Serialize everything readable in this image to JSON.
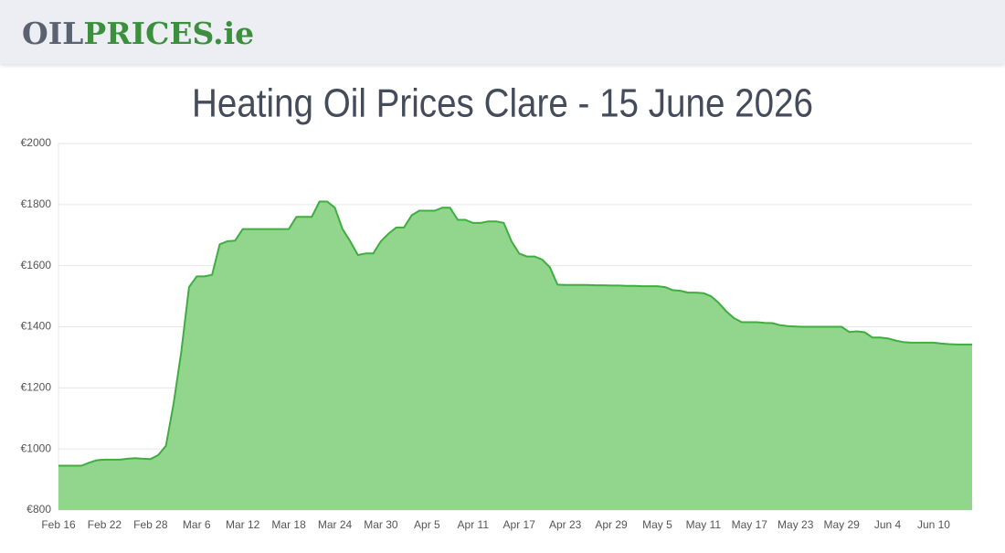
{
  "header": {
    "logo_part1": "OIL",
    "logo_part2": "PRICES.ie"
  },
  "chart_data": {
    "type": "area",
    "title": "Heating Oil Prices Clare - 15 June 2026",
    "categories": [
      "Feb 16",
      null,
      null,
      null,
      null,
      null,
      "Feb 22",
      null,
      null,
      null,
      null,
      null,
      "Feb 28",
      null,
      null,
      null,
      null,
      null,
      "Mar 6",
      null,
      null,
      null,
      null,
      null,
      "Mar 12",
      null,
      null,
      null,
      null,
      null,
      "Mar 18",
      null,
      null,
      null,
      null,
      null,
      "Mar 24",
      null,
      null,
      null,
      null,
      null,
      "Mar 30",
      null,
      null,
      null,
      null,
      null,
      "Apr 5",
      null,
      null,
      null,
      null,
      null,
      "Apr 11",
      null,
      null,
      null,
      null,
      null,
      "Apr 17",
      null,
      null,
      null,
      null,
      null,
      "Apr 23",
      null,
      null,
      null,
      null,
      null,
      "Apr 29",
      null,
      null,
      null,
      null,
      null,
      "May 5",
      null,
      null,
      null,
      null,
      null,
      "May 11",
      null,
      null,
      null,
      null,
      null,
      "May 17",
      null,
      null,
      null,
      null,
      null,
      "May 23",
      null,
      null,
      null,
      null,
      null,
      "May 29",
      null,
      null,
      null,
      null,
      null,
      "Jun 4",
      null,
      null,
      null,
      null,
      null,
      "Jun 10",
      null,
      null,
      null,
      null,
      null
    ],
    "series": [
      {
        "color": "#3fae3f",
        "fill": "#92d68e",
        "values": [
          945,
          945,
          945,
          945,
          955,
          963,
          965,
          965,
          965,
          968,
          970,
          968,
          967,
          980,
          1010,
          1150,
          1320,
          1530,
          1565,
          1565,
          1570,
          1670,
          1680,
          1682,
          1720,
          1720,
          1720,
          1720,
          1720,
          1720,
          1720,
          1760,
          1760,
          1760,
          1810,
          1810,
          1790,
          1720,
          1680,
          1635,
          1640,
          1640,
          1680,
          1705,
          1725,
          1725,
          1765,
          1780,
          1780,
          1780,
          1790,
          1790,
          1750,
          1750,
          1740,
          1740,
          1745,
          1745,
          1740,
          1680,
          1640,
          1630,
          1630,
          1620,
          1595,
          1538,
          1537,
          1537,
          1537,
          1537,
          1536,
          1536,
          1535,
          1535,
          1534,
          1534,
          1533,
          1533,
          1533,
          1530,
          1520,
          1518,
          1512,
          1512,
          1510,
          1500,
          1478,
          1450,
          1428,
          1415,
          1415,
          1415,
          1413,
          1412,
          1405,
          1402,
          1401,
          1400,
          1400,
          1400,
          1400,
          1400,
          1400,
          1383,
          1385,
          1382,
          1365,
          1365,
          1362,
          1355,
          1350,
          1348,
          1348,
          1348,
          1348,
          1345,
          1343,
          1342,
          1342,
          1342
        ]
      }
    ],
    "ylim": [
      800,
      2000
    ],
    "yticks": [
      {
        "value": 800,
        "label": "€800"
      },
      {
        "value": 1000,
        "label": "€1000"
      },
      {
        "value": 1200,
        "label": "€1200"
      },
      {
        "value": 1400,
        "label": "€1400"
      },
      {
        "value": 1600,
        "label": "€1600"
      },
      {
        "value": 1800,
        "label": "€1800"
      },
      {
        "value": 2000,
        "label": "€2000"
      }
    ],
    "grid": true
  }
}
